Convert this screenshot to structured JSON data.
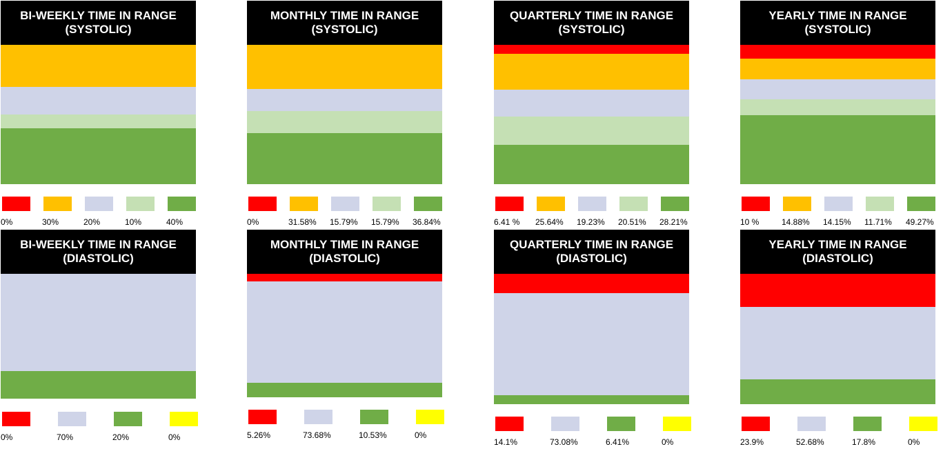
{
  "palette": {
    "red": "#ff0000",
    "orange": "#ffc000",
    "lavender": "#cfd4e8",
    "light_green": "#c5e0b4",
    "green": "#70ad47",
    "yellow": "#ffff00"
  },
  "chart_data": [
    {
      "type": "bar",
      "title": "BI-WEEKLY TIME IN RANGE (SYSTOLIC)",
      "series": [
        {
          "color": "#ff0000",
          "value": 0,
          "label": "0%"
        },
        {
          "color": "#ffc000",
          "value": 30,
          "label": "30%"
        },
        {
          "color": "#cfd4e8",
          "value": 20,
          "label": "20%"
        },
        {
          "color": "#c5e0b4",
          "value": 10,
          "label": "10%"
        },
        {
          "color": "#70ad47",
          "value": 40,
          "label": "40%"
        }
      ]
    },
    {
      "type": "bar",
      "title": "MONTHLY TIME IN RANGE (SYSTOLIC)",
      "series": [
        {
          "color": "#ff0000",
          "value": 0,
          "label": "0%"
        },
        {
          "color": "#ffc000",
          "value": 31.58,
          "label": "31.58%"
        },
        {
          "color": "#cfd4e8",
          "value": 15.79,
          "label": "15.79%"
        },
        {
          "color": "#c5e0b4",
          "value": 15.79,
          "label": "15.79%"
        },
        {
          "color": "#70ad47",
          "value": 36.84,
          "label": "36.84%"
        }
      ]
    },
    {
      "type": "bar",
      "title": "QUARTERLY TIME IN RANGE (SYSTOLIC)",
      "series": [
        {
          "color": "#ff0000",
          "value": 6.41,
          "label": "6.41 %"
        },
        {
          "color": "#ffc000",
          "value": 25.64,
          "label": "25.64%"
        },
        {
          "color": "#cfd4e8",
          "value": 19.23,
          "label": "19.23%"
        },
        {
          "color": "#c5e0b4",
          "value": 20.51,
          "label": "20.51%"
        },
        {
          "color": "#70ad47",
          "value": 28.21,
          "label": "28.21%"
        }
      ]
    },
    {
      "type": "bar",
      "title": "YEARLY TIME IN RANGE (SYSTOLIC)",
      "series": [
        {
          "color": "#ff0000",
          "value": 10,
          "label": "10 %"
        },
        {
          "color": "#ffc000",
          "value": 14.88,
          "label": "14.88%"
        },
        {
          "color": "#cfd4e8",
          "value": 14.15,
          "label": "14.15%"
        },
        {
          "color": "#c5e0b4",
          "value": 11.71,
          "label": "11.71%"
        },
        {
          "color": "#70ad47",
          "value": 49.27,
          "label": "49.27%"
        }
      ]
    },
    {
      "type": "bar",
      "title": "BI-WEEKLY TIME IN RANGE (DIASTOLIC)",
      "series": [
        {
          "color": "#ff0000",
          "value": 0,
          "label": "0%"
        },
        {
          "color": "#cfd4e8",
          "value": 70,
          "label": "70%"
        },
        {
          "color": "#70ad47",
          "value": 20,
          "label": "20%"
        },
        {
          "color": "#ffff00",
          "value": 0,
          "label": "0%"
        }
      ]
    },
    {
      "type": "bar",
      "title": "MONTHLY TIME IN RANGE (DIASTOLIC)",
      "series": [
        {
          "color": "#ff0000",
          "value": 5.26,
          "label": "5.26%"
        },
        {
          "color": "#cfd4e8",
          "value": 73.68,
          "label": "73.68%"
        },
        {
          "color": "#70ad47",
          "value": 10.53,
          "label": "10.53%"
        },
        {
          "color": "#ffff00",
          "value": 0,
          "label": "0%"
        }
      ]
    },
    {
      "type": "bar",
      "title": "QUARTERLY TIME IN RANGE (DIASTOLIC)",
      "series": [
        {
          "color": "#ff0000",
          "value": 14.1,
          "label": "14.1%"
        },
        {
          "color": "#cfd4e8",
          "value": 73.08,
          "label": "73.08%"
        },
        {
          "color": "#70ad47",
          "value": 6.41,
          "label": "6.41%"
        },
        {
          "color": "#ffff00",
          "value": 0,
          "label": "0%"
        }
      ]
    },
    {
      "type": "bar",
      "title": "YEARLY TIME IN RANGE (DIASTOLIC)",
      "series": [
        {
          "color": "#ff0000",
          "value": 23.9,
          "label": "23.9%"
        },
        {
          "color": "#cfd4e8",
          "value": 52.68,
          "label": "52.68%"
        },
        {
          "color": "#70ad47",
          "value": 17.8,
          "label": "17.8%"
        },
        {
          "color": "#ffff00",
          "value": 0,
          "label": "0%"
        }
      ]
    }
  ]
}
